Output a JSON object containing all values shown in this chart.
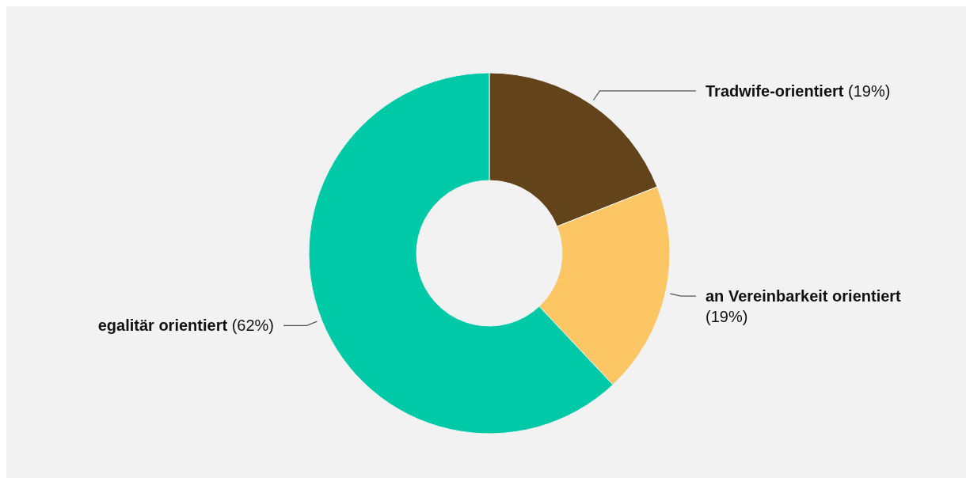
{
  "chart_data": {
    "type": "donut",
    "categories": [
      "Tradwife-orientiert",
      "an Vereinbarkeit orientiert",
      "egalitär orientiert"
    ],
    "values": [
      19,
      19,
      62
    ],
    "colors": [
      "#62431a",
      "#fdc665",
      "#00c9a7"
    ],
    "value_labels": [
      "(19%)",
      "(19%)",
      "(62%)"
    ]
  }
}
